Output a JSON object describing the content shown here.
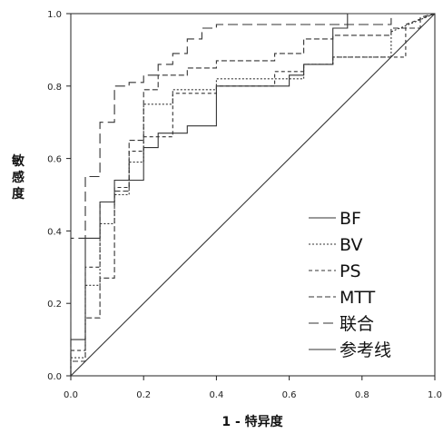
{
  "chart_data": {
    "type": "line",
    "xlabel": "1 - 特异度",
    "ylabel": "敏感度",
    "xlim": [
      0,
      1
    ],
    "ylim": [
      0,
      1
    ],
    "x_ticks": [
      "0.0",
      "0.2",
      "0.4",
      "0.6",
      "0.8",
      "1.0"
    ],
    "y_ticks": [
      "0.0",
      "0.2",
      "0.4",
      "0.6",
      "0.8",
      "1.0"
    ],
    "grid": false,
    "legend_position": "bottom-right",
    "series": [
      {
        "name": "BF",
        "dash": "solid",
        "x": [
          0,
          0,
          0.04,
          0.04,
          0.08,
          0.08,
          0.12,
          0.12,
          0.2,
          0.2,
          0.24,
          0.24,
          0.32,
          0.32,
          0.4,
          0.4,
          0.6,
          0.6,
          0.64,
          0.64,
          0.72,
          0.72,
          0.76,
          0.76,
          1.0
        ],
        "y": [
          0,
          0.1,
          0.1,
          0.38,
          0.38,
          0.48,
          0.48,
          0.54,
          0.54,
          0.63,
          0.63,
          0.67,
          0.67,
          0.69,
          0.69,
          0.8,
          0.8,
          0.83,
          0.83,
          0.86,
          0.86,
          0.96,
          0.96,
          1.0,
          1.0
        ]
      },
      {
        "name": "BV",
        "dash": "fine",
        "x": [
          0,
          0,
          0.04,
          0.04,
          0.08,
          0.08,
          0.12,
          0.12,
          0.16,
          0.16,
          0.2,
          0.2,
          0.28,
          0.28,
          0.4,
          0.4,
          0.64,
          0.64,
          0.72,
          0.72,
          0.88,
          0.88,
          1.0
        ],
        "y": [
          0,
          0.05,
          0.05,
          0.25,
          0.25,
          0.42,
          0.42,
          0.5,
          0.5,
          0.59,
          0.59,
          0.75,
          0.75,
          0.79,
          0.79,
          0.82,
          0.82,
          0.86,
          0.86,
          0.88,
          0.88,
          0.95,
          1.0
        ]
      },
      {
        "name": "PS",
        "dash": "medium",
        "x": [
          0,
          0,
          0.04,
          0.04,
          0.08,
          0.08,
          0.12,
          0.12,
          0.16,
          0.16,
          0.2,
          0.2,
          0.28,
          0.28,
          0.4,
          0.4,
          0.56,
          0.56,
          0.64,
          0.64,
          0.72,
          0.72,
          0.92,
          0.92,
          1.0
        ],
        "y": [
          0,
          0.07,
          0.07,
          0.3,
          0.3,
          0.48,
          0.48,
          0.52,
          0.52,
          0.62,
          0.62,
          0.66,
          0.66,
          0.78,
          0.78,
          0.8,
          0.8,
          0.84,
          0.84,
          0.86,
          0.86,
          0.88,
          0.88,
          0.97,
          1.0
        ]
      },
      {
        "name": "MTT",
        "dash": "dashed",
        "x": [
          0,
          0,
          0.04,
          0.04,
          0.08,
          0.08,
          0.12,
          0.12,
          0.16,
          0.16,
          0.2,
          0.2,
          0.24,
          0.24,
          0.32,
          0.32,
          0.4,
          0.4,
          0.56,
          0.56,
          0.64,
          0.64,
          0.72,
          0.72,
          0.88,
          0.88,
          0.96,
          0.96,
          1.0
        ],
        "y": [
          0,
          0.04,
          0.04,
          0.16,
          0.16,
          0.27,
          0.27,
          0.51,
          0.51,
          0.65,
          0.65,
          0.79,
          0.79,
          0.83,
          0.83,
          0.85,
          0.85,
          0.87,
          0.87,
          0.89,
          0.89,
          0.93,
          0.93,
          0.94,
          0.94,
          0.96,
          0.96,
          0.99,
          1.0
        ]
      },
      {
        "name": "联合",
        "dash": "long",
        "x": [
          0,
          0,
          0.04,
          0.04,
          0.08,
          0.08,
          0.12,
          0.12,
          0.16,
          0.16,
          0.2,
          0.2,
          0.24,
          0.24,
          0.28,
          0.28,
          0.32,
          0.32,
          0.36,
          0.36,
          0.4,
          0.4,
          0.88,
          0.88,
          1.0
        ],
        "y": [
          0,
          0.38,
          0.38,
          0.55,
          0.55,
          0.7,
          0.7,
          0.8,
          0.8,
          0.81,
          0.81,
          0.83,
          0.83,
          0.86,
          0.86,
          0.89,
          0.89,
          0.93,
          0.93,
          0.96,
          0.96,
          0.97,
          0.97,
          1.0,
          1.0
        ]
      },
      {
        "name": "参考线",
        "dash": "solid",
        "x": [
          0,
          1
        ],
        "y": [
          0,
          1
        ]
      }
    ]
  }
}
